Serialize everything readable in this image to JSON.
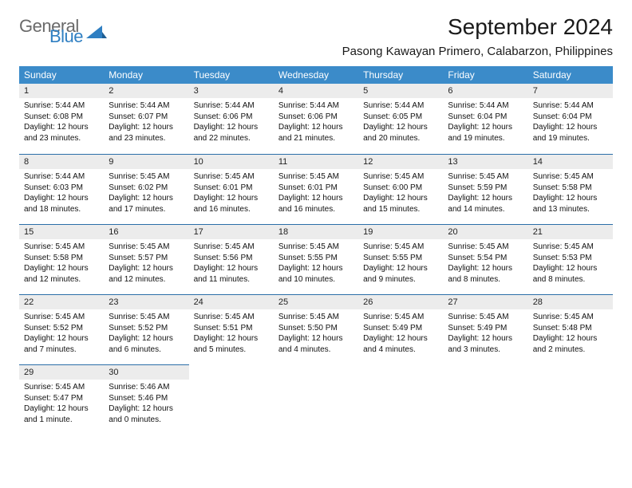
{
  "brand": {
    "part1": "General",
    "part2": "Blue"
  },
  "title": "September 2024",
  "location": "Pasong Kawayan Primero, Calabarzon, Philippines",
  "colors": {
    "header_bg": "#3b8bc9",
    "header_text": "#ffffff",
    "daynum_bg": "#ececec",
    "rule": "#2b6fa8",
    "logo_gray": "#6a6a6a",
    "logo_blue": "#2f7fc2"
  },
  "weekdays": [
    "Sunday",
    "Monday",
    "Tuesday",
    "Wednesday",
    "Thursday",
    "Friday",
    "Saturday"
  ],
  "weeks": [
    [
      {
        "n": "1",
        "sr": "Sunrise: 5:44 AM",
        "ss": "Sunset: 6:08 PM",
        "dl": "Daylight: 12 hours and 23 minutes."
      },
      {
        "n": "2",
        "sr": "Sunrise: 5:44 AM",
        "ss": "Sunset: 6:07 PM",
        "dl": "Daylight: 12 hours and 23 minutes."
      },
      {
        "n": "3",
        "sr": "Sunrise: 5:44 AM",
        "ss": "Sunset: 6:06 PM",
        "dl": "Daylight: 12 hours and 22 minutes."
      },
      {
        "n": "4",
        "sr": "Sunrise: 5:44 AM",
        "ss": "Sunset: 6:06 PM",
        "dl": "Daylight: 12 hours and 21 minutes."
      },
      {
        "n": "5",
        "sr": "Sunrise: 5:44 AM",
        "ss": "Sunset: 6:05 PM",
        "dl": "Daylight: 12 hours and 20 minutes."
      },
      {
        "n": "6",
        "sr": "Sunrise: 5:44 AM",
        "ss": "Sunset: 6:04 PM",
        "dl": "Daylight: 12 hours and 19 minutes."
      },
      {
        "n": "7",
        "sr": "Sunrise: 5:44 AM",
        "ss": "Sunset: 6:04 PM",
        "dl": "Daylight: 12 hours and 19 minutes."
      }
    ],
    [
      {
        "n": "8",
        "sr": "Sunrise: 5:44 AM",
        "ss": "Sunset: 6:03 PM",
        "dl": "Daylight: 12 hours and 18 minutes."
      },
      {
        "n": "9",
        "sr": "Sunrise: 5:45 AM",
        "ss": "Sunset: 6:02 PM",
        "dl": "Daylight: 12 hours and 17 minutes."
      },
      {
        "n": "10",
        "sr": "Sunrise: 5:45 AM",
        "ss": "Sunset: 6:01 PM",
        "dl": "Daylight: 12 hours and 16 minutes."
      },
      {
        "n": "11",
        "sr": "Sunrise: 5:45 AM",
        "ss": "Sunset: 6:01 PM",
        "dl": "Daylight: 12 hours and 16 minutes."
      },
      {
        "n": "12",
        "sr": "Sunrise: 5:45 AM",
        "ss": "Sunset: 6:00 PM",
        "dl": "Daylight: 12 hours and 15 minutes."
      },
      {
        "n": "13",
        "sr": "Sunrise: 5:45 AM",
        "ss": "Sunset: 5:59 PM",
        "dl": "Daylight: 12 hours and 14 minutes."
      },
      {
        "n": "14",
        "sr": "Sunrise: 5:45 AM",
        "ss": "Sunset: 5:58 PM",
        "dl": "Daylight: 12 hours and 13 minutes."
      }
    ],
    [
      {
        "n": "15",
        "sr": "Sunrise: 5:45 AM",
        "ss": "Sunset: 5:58 PM",
        "dl": "Daylight: 12 hours and 12 minutes."
      },
      {
        "n": "16",
        "sr": "Sunrise: 5:45 AM",
        "ss": "Sunset: 5:57 PM",
        "dl": "Daylight: 12 hours and 12 minutes."
      },
      {
        "n": "17",
        "sr": "Sunrise: 5:45 AM",
        "ss": "Sunset: 5:56 PM",
        "dl": "Daylight: 12 hours and 11 minutes."
      },
      {
        "n": "18",
        "sr": "Sunrise: 5:45 AM",
        "ss": "Sunset: 5:55 PM",
        "dl": "Daylight: 12 hours and 10 minutes."
      },
      {
        "n": "19",
        "sr": "Sunrise: 5:45 AM",
        "ss": "Sunset: 5:55 PM",
        "dl": "Daylight: 12 hours and 9 minutes."
      },
      {
        "n": "20",
        "sr": "Sunrise: 5:45 AM",
        "ss": "Sunset: 5:54 PM",
        "dl": "Daylight: 12 hours and 8 minutes."
      },
      {
        "n": "21",
        "sr": "Sunrise: 5:45 AM",
        "ss": "Sunset: 5:53 PM",
        "dl": "Daylight: 12 hours and 8 minutes."
      }
    ],
    [
      {
        "n": "22",
        "sr": "Sunrise: 5:45 AM",
        "ss": "Sunset: 5:52 PM",
        "dl": "Daylight: 12 hours and 7 minutes."
      },
      {
        "n": "23",
        "sr": "Sunrise: 5:45 AM",
        "ss": "Sunset: 5:52 PM",
        "dl": "Daylight: 12 hours and 6 minutes."
      },
      {
        "n": "24",
        "sr": "Sunrise: 5:45 AM",
        "ss": "Sunset: 5:51 PM",
        "dl": "Daylight: 12 hours and 5 minutes."
      },
      {
        "n": "25",
        "sr": "Sunrise: 5:45 AM",
        "ss": "Sunset: 5:50 PM",
        "dl": "Daylight: 12 hours and 4 minutes."
      },
      {
        "n": "26",
        "sr": "Sunrise: 5:45 AM",
        "ss": "Sunset: 5:49 PM",
        "dl": "Daylight: 12 hours and 4 minutes."
      },
      {
        "n": "27",
        "sr": "Sunrise: 5:45 AM",
        "ss": "Sunset: 5:49 PM",
        "dl": "Daylight: 12 hours and 3 minutes."
      },
      {
        "n": "28",
        "sr": "Sunrise: 5:45 AM",
        "ss": "Sunset: 5:48 PM",
        "dl": "Daylight: 12 hours and 2 minutes."
      }
    ],
    [
      {
        "n": "29",
        "sr": "Sunrise: 5:45 AM",
        "ss": "Sunset: 5:47 PM",
        "dl": "Daylight: 12 hours and 1 minute."
      },
      {
        "n": "30",
        "sr": "Sunrise: 5:46 AM",
        "ss": "Sunset: 5:46 PM",
        "dl": "Daylight: 12 hours and 0 minutes."
      },
      {
        "empty": true
      },
      {
        "empty": true
      },
      {
        "empty": true
      },
      {
        "empty": true
      },
      {
        "empty": true
      }
    ]
  ]
}
